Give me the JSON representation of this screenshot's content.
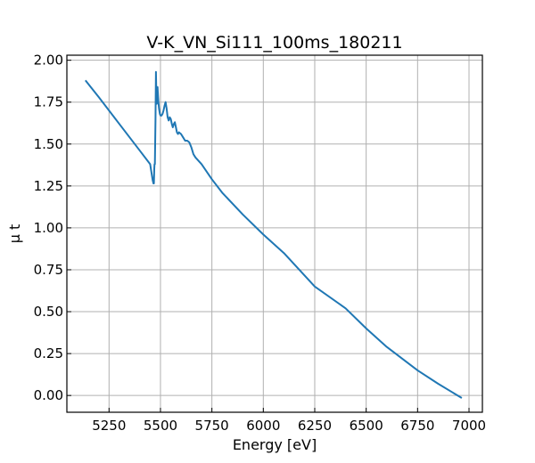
{
  "chart_data": {
    "type": "line",
    "title": "V-K_VN_Si111_100ms_180211",
    "xlabel": "Energy [eV]",
    "ylabel": "μ t",
    "xlim": [
      5045,
      7065
    ],
    "ylim": [
      -0.1,
      2.03
    ],
    "xticks": [
      5250,
      5500,
      5750,
      6000,
      6250,
      6500,
      6750,
      7000
    ],
    "yticks": [
      0.0,
      0.25,
      0.5,
      0.75,
      1.0,
      1.25,
      1.5,
      1.75,
      2.0
    ],
    "xtick_labels": [
      "5250",
      "5500",
      "5750",
      "6000",
      "6250",
      "6500",
      "6750",
      "7000"
    ],
    "ytick_labels": [
      "0.00",
      "0.25",
      "0.50",
      "0.75",
      "1.00",
      "1.25",
      "1.50",
      "1.75",
      "2.00"
    ],
    "grid": true,
    "series": [
      {
        "color": "#1f77b4",
        "x": [
          5135,
          5200,
          5300,
          5400,
          5450,
          5462,
          5466,
          5468,
          5470,
          5471,
          5473,
          5476,
          5478,
          5480,
          5482,
          5484,
          5486,
          5488,
          5490,
          5493,
          5497,
          5500,
          5505,
          5510,
          5515,
          5520,
          5525,
          5530,
          5535,
          5540,
          5545,
          5550,
          5555,
          5560,
          5565,
          5570,
          5575,
          5580,
          5585,
          5590,
          5600,
          5610,
          5620,
          5630,
          5640,
          5650,
          5660,
          5670,
          5700,
          5750,
          5800,
          5900,
          6000,
          6100,
          6250,
          6400,
          6500,
          6600,
          6750,
          6850,
          6965
        ],
        "y": [
          1.88,
          1.78,
          1.62,
          1.46,
          1.38,
          1.285,
          1.265,
          1.265,
          1.35,
          1.38,
          1.38,
          1.65,
          1.93,
          1.78,
          1.74,
          1.82,
          1.84,
          1.79,
          1.75,
          1.71,
          1.68,
          1.67,
          1.67,
          1.68,
          1.7,
          1.73,
          1.75,
          1.71,
          1.66,
          1.64,
          1.66,
          1.65,
          1.62,
          1.6,
          1.62,
          1.63,
          1.6,
          1.57,
          1.56,
          1.57,
          1.56,
          1.54,
          1.52,
          1.52,
          1.51,
          1.48,
          1.44,
          1.42,
          1.38,
          1.29,
          1.21,
          1.08,
          0.96,
          0.85,
          0.65,
          0.52,
          0.4,
          0.29,
          0.15,
          0.07,
          -0.015
        ]
      }
    ]
  }
}
